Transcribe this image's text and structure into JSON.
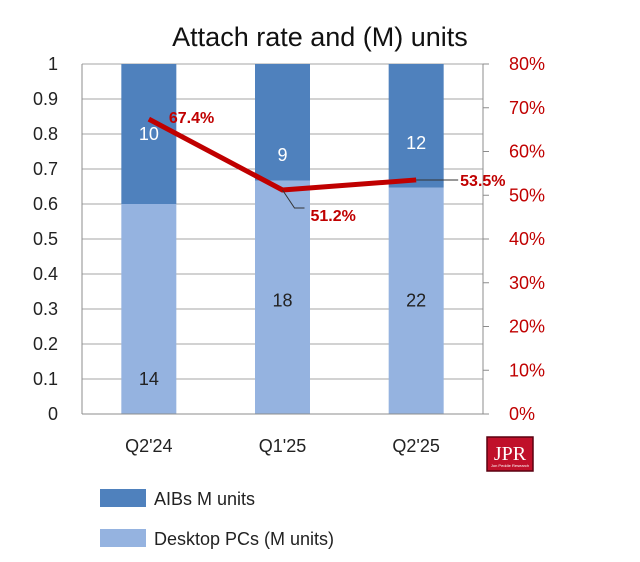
{
  "chart_data": {
    "type": "bar",
    "title": "Attach rate and (M) units",
    "categories": [
      "Q2'24",
      "Q1'25",
      "Q2'25"
    ],
    "series": [
      {
        "name": "AIBs M units",
        "values": [
          10,
          9,
          12
        ],
        "shares": [
          0.4,
          0.333,
          0.353
        ],
        "color": "#4f81bd"
      },
      {
        "name": "Desktop PCs (M units)",
        "values": [
          14,
          18,
          22
        ],
        "shares": [
          0.6,
          0.667,
          0.647
        ],
        "color": "#95b3e0"
      }
    ],
    "line_series": {
      "values": [
        67.4,
        51.2,
        53.5
      ],
      "labels": [
        "67.4%",
        "51.2%",
        "53.5%"
      ],
      "color": "#c00000"
    },
    "y_left": {
      "ylim": [
        0,
        1
      ],
      "ticks": [
        "0",
        "0.1",
        "0.2",
        "0.3",
        "0.4",
        "0.5",
        "0.6",
        "0.7",
        "0.8",
        "0.9",
        "1"
      ]
    },
    "y_right": {
      "ylim": [
        0,
        80
      ],
      "ticks": [
        "0%",
        "10%",
        "20%",
        "30%",
        "40%",
        "50%",
        "60%",
        "70%",
        "80%"
      ]
    },
    "grid": true,
    "legend_position": "bottom-left"
  },
  "logo": {
    "text": "JPR",
    "subtext": "Jon Peddie Research"
  }
}
